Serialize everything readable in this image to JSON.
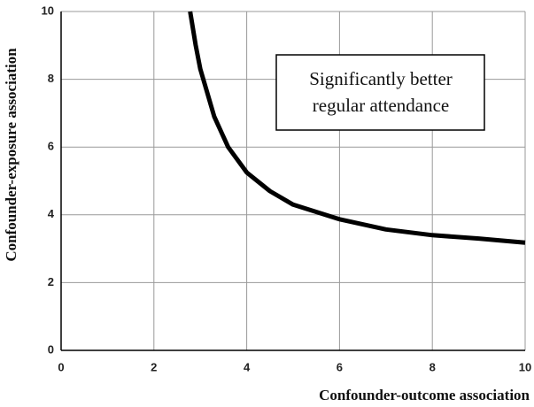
{
  "chart_data": {
    "type": "line",
    "x_label": "Confounder-outcome association",
    "y_label": "Confounder-exposure association",
    "annotation": [
      "Significantly better",
      "regular attendance"
    ],
    "series": [
      {
        "name": null,
        "color": "#000000",
        "x": [
          2.78,
          2.9,
          3.0,
          3.3,
          3.6,
          4.0,
          4.5,
          5.0,
          6.0,
          7.0,
          8.0,
          9.0,
          10.0
        ],
        "values": [
          10,
          9.0,
          8.3,
          6.9,
          6.0,
          5.25,
          4.7,
          4.3,
          3.87,
          3.57,
          3.4,
          3.3,
          3.18
        ]
      }
    ],
    "xlim": [
      0,
      10
    ],
    "ylim": [
      0,
      10
    ],
    "xticks": [
      0,
      2,
      4,
      6,
      8,
      10
    ],
    "yticks": [
      0,
      2,
      4,
      6,
      8,
      10
    ],
    "grid": true
  }
}
